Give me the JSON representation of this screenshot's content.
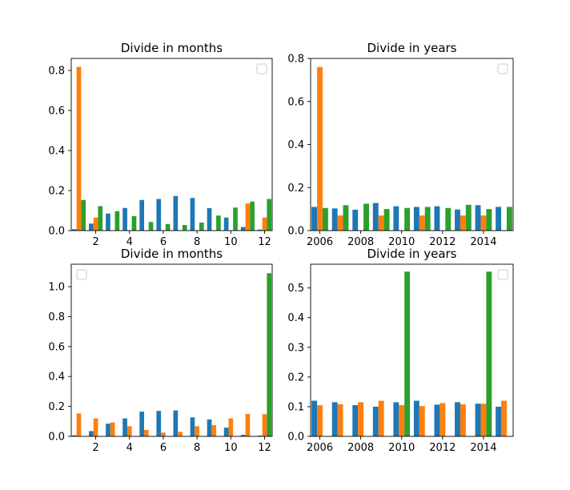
{
  "figure": {
    "colors": {
      "blue": "#1f77b4",
      "orange": "#ff7f0e",
      "green": "#2ca02c"
    }
  },
  "chart_data": [
    {
      "type": "bar",
      "title": "Divide in months",
      "legend": "top-right (empty)",
      "xlim": [
        0.55,
        12.45
      ],
      "ylim": [
        0,
        0.86
      ],
      "xticks": [
        2,
        4,
        6,
        8,
        10,
        12
      ],
      "yticks": [
        0.0,
        0.2,
        0.4,
        0.6,
        0.8
      ],
      "ytick_labels": [
        "0.0",
        "0.2",
        "0.4",
        "0.6",
        "0.8"
      ],
      "categories": [
        1,
        2,
        3,
        4,
        5,
        6,
        7,
        8,
        9,
        10,
        11,
        12
      ],
      "series": [
        {
          "color": "#1f77b4",
          "values": [
            0.007,
            0.035,
            0.085,
            0.113,
            0.153,
            0.158,
            0.173,
            0.163,
            0.112,
            0.065,
            0.018,
            0.005
          ]
        },
        {
          "color": "#ff7f0e",
          "values": [
            0.818,
            0.065,
            0.0,
            0.0,
            0.0,
            0.0,
            0.0,
            0.0,
            0.0,
            0.0,
            0.135,
            0.065
          ]
        },
        {
          "color": "#2ca02c",
          "values": [
            0.153,
            0.122,
            0.097,
            0.072,
            0.043,
            0.033,
            0.028,
            0.04,
            0.075,
            0.115,
            0.145,
            0.158
          ]
        }
      ]
    },
    {
      "type": "bar",
      "title": "Divide in years",
      "legend": "top-right (empty)",
      "xlim": [
        2005.55,
        2015.45
      ],
      "ylim": [
        0,
        0.8
      ],
      "xticks": [
        2006,
        2008,
        2010,
        2012,
        2014
      ],
      "yticks": [
        0.0,
        0.2,
        0.4,
        0.6,
        0.8
      ],
      "ytick_labels": [
        "0.0",
        "0.2",
        "0.4",
        "0.6",
        "0.8"
      ],
      "categories": [
        2006,
        2007,
        2008,
        2009,
        2010,
        2011,
        2012,
        2013,
        2014,
        2015
      ],
      "series": [
        {
          "color": "#1f77b4",
          "values": [
            0.11,
            0.103,
            0.097,
            0.128,
            0.113,
            0.11,
            0.113,
            0.098,
            0.118,
            0.11
          ]
        },
        {
          "color": "#ff7f0e",
          "values": [
            0.76,
            0.07,
            0.0,
            0.07,
            0.0,
            0.07,
            0.0,
            0.07,
            0.07,
            0.0
          ]
        },
        {
          "color": "#2ca02c",
          "values": [
            0.105,
            0.118,
            0.125,
            0.1,
            0.105,
            0.11,
            0.105,
            0.12,
            0.1,
            0.11
          ]
        }
      ]
    },
    {
      "type": "bar",
      "title": "Divide in months",
      "legend": "top-left (empty)",
      "xlim": [
        0.55,
        12.45
      ],
      "ylim": [
        0,
        1.15
      ],
      "xticks": [
        2,
        4,
        6,
        8,
        10,
        12
      ],
      "yticks": [
        0.0,
        0.2,
        0.4,
        0.6,
        0.8,
        1.0
      ],
      "ytick_labels": [
        "0.0",
        "0.2",
        "0.4",
        "0.6",
        "0.8",
        "1.0"
      ],
      "categories": [
        1,
        2,
        3,
        4,
        5,
        6,
        7,
        8,
        9,
        10,
        11,
        12
      ],
      "series": [
        {
          "color": "#1f77b4",
          "values": [
            0.007,
            0.035,
            0.085,
            0.12,
            0.165,
            0.17,
            0.173,
            0.127,
            0.113,
            0.058,
            0.01,
            0.005
          ]
        },
        {
          "color": "#ff7f0e",
          "values": [
            0.153,
            0.12,
            0.093,
            0.068,
            0.043,
            0.025,
            0.03,
            0.068,
            0.075,
            0.12,
            0.15,
            0.148
          ]
        },
        {
          "color": "#2ca02c",
          "values": [
            0.0,
            0.0,
            0.0,
            0.0,
            0.0,
            0.0,
            0.0,
            0.0,
            0.0,
            0.0,
            0.0,
            1.09
          ]
        }
      ]
    },
    {
      "type": "bar",
      "title": "Divide in years",
      "legend": "top-right (empty)",
      "xlim": [
        2005.55,
        2015.45
      ],
      "ylim": [
        0,
        0.58
      ],
      "xticks": [
        2006,
        2008,
        2010,
        2012,
        2014
      ],
      "yticks": [
        0.0,
        0.1,
        0.2,
        0.3,
        0.4,
        0.5
      ],
      "ytick_labels": [
        "0.0",
        "0.1",
        "0.2",
        "0.3",
        "0.4",
        "0.5"
      ],
      "categories": [
        2006,
        2007,
        2008,
        2009,
        2010,
        2011,
        2012,
        2013,
        2014,
        2015
      ],
      "series": [
        {
          "color": "#1f77b4",
          "values": [
            0.12,
            0.115,
            0.105,
            0.1,
            0.115,
            0.12,
            0.107,
            0.115,
            0.11,
            0.1
          ]
        },
        {
          "color": "#ff7f0e",
          "values": [
            0.105,
            0.108,
            0.115,
            0.12,
            0.105,
            0.102,
            0.112,
            0.108,
            0.11,
            0.12
          ]
        },
        {
          "color": "#2ca02c",
          "values": [
            0.0,
            0.0,
            0.0,
            0.0,
            0.555,
            0.0,
            0.0,
            0.0,
            0.555,
            0.0
          ]
        }
      ]
    }
  ]
}
